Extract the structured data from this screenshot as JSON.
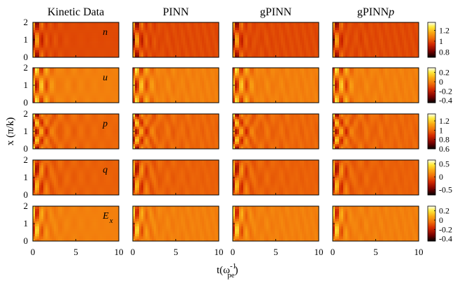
{
  "chart_data": {
    "type": "heatmap",
    "title": "",
    "columns": [
      "Kinetic Data",
      "PINN",
      "gPINN",
      "gPINN"
    ],
    "column_suffix": [
      "",
      "",
      "",
      "p"
    ],
    "xlabel": "t(ω",
    "xlabel_sup": "-1",
    "xlabel_sub": "pe",
    "xlabel_close": ")",
    "ylabel": "x (π/k)",
    "x_range": [
      0,
      10
    ],
    "x_ticks": [
      "0",
      "5",
      "10"
    ],
    "y_range": [
      0,
      2
    ],
    "y_ticks": [
      "2",
      "1",
      "0"
    ],
    "colormap": "hot",
    "rows": [
      {
        "var": "n",
        "sub": "",
        "clim": [
          0.7,
          1.35
        ],
        "base": 1.0,
        "colorbar_ticks": [
          "1.2",
          "1",
          "0.8"
        ],
        "colorbar_values": [
          1.2,
          1.0,
          0.8
        ],
        "amplitude": 0.3,
        "spatial_mode": 1,
        "phase": 0.0,
        "secondary": 0.02
      },
      {
        "var": "u",
        "sub": "",
        "clim": [
          -0.45,
          0.3
        ],
        "base": 0.0,
        "colorbar_ticks": [
          "0.2",
          "0",
          "-0.2",
          "-0.4"
        ],
        "colorbar_values": [
          0.2,
          0.0,
          -0.2,
          -0.4
        ],
        "amplitude": 0.45,
        "spatial_mode": 1,
        "phase": 3.14,
        "secondary": 0.06
      },
      {
        "var": "p",
        "sub": "",
        "clim": [
          0.6,
          1.35
        ],
        "base": 1.0,
        "colorbar_ticks": [
          "1.2",
          "1",
          "0.8",
          "0.6"
        ],
        "colorbar_values": [
          1.2,
          1.0,
          0.8,
          0.6
        ],
        "amplitude": 0.4,
        "spatial_mode": 2,
        "phase": 0.0,
        "secondary": 0.08
      },
      {
        "var": "q",
        "sub": "",
        "clim": [
          -0.7,
          0.65
        ],
        "base": 0.0,
        "colorbar_ticks": [
          "0.5",
          "0",
          "-0.5"
        ],
        "colorbar_values": [
          0.5,
          0.0,
          -0.5
        ],
        "amplitude": 0.65,
        "spatial_mode": 1,
        "phase": 1.57,
        "secondary": 0.1
      },
      {
        "var": "E",
        "sub": "x",
        "clim": [
          -0.45,
          0.3
        ],
        "base": 0.0,
        "colorbar_ticks": [
          "0.2",
          "0",
          "-0.2",
          "-0.4"
        ],
        "colorbar_values": [
          0.2,
          0.0,
          -0.2,
          -0.4
        ],
        "amplitude": 0.35,
        "spatial_mode": 1,
        "phase": 1.2,
        "secondary": 0.04
      }
    ]
  }
}
